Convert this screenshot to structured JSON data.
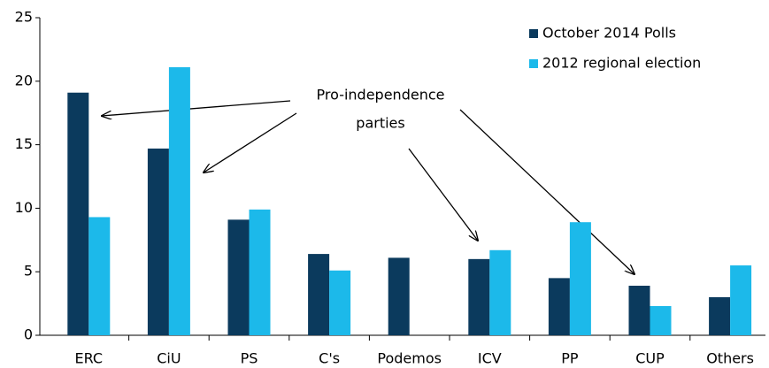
{
  "chart_data": {
    "type": "bar",
    "categories": [
      "ERC",
      "CiU",
      "PS",
      "C's",
      "Podemos",
      "ICV",
      "PP",
      "CUP",
      "Others"
    ],
    "series": [
      {
        "name": "October 2014 Polls",
        "color": "#0b3a5d",
        "values": [
          19.1,
          14.7,
          9.1,
          6.4,
          6.1,
          6.0,
          4.5,
          3.9,
          3.0
        ]
      },
      {
        "name": "2012 regional election",
        "color": "#1cb9ea",
        "values": [
          9.3,
          21.1,
          9.9,
          5.1,
          null,
          6.7,
          8.9,
          2.3,
          5.5
        ]
      }
    ],
    "ylim": [
      0,
      25
    ],
    "yticks": [
      0,
      5,
      10,
      15,
      20,
      25
    ],
    "grid": false,
    "legend": "upper right",
    "annotation": [
      "Pro-independence",
      "parties"
    ]
  }
}
